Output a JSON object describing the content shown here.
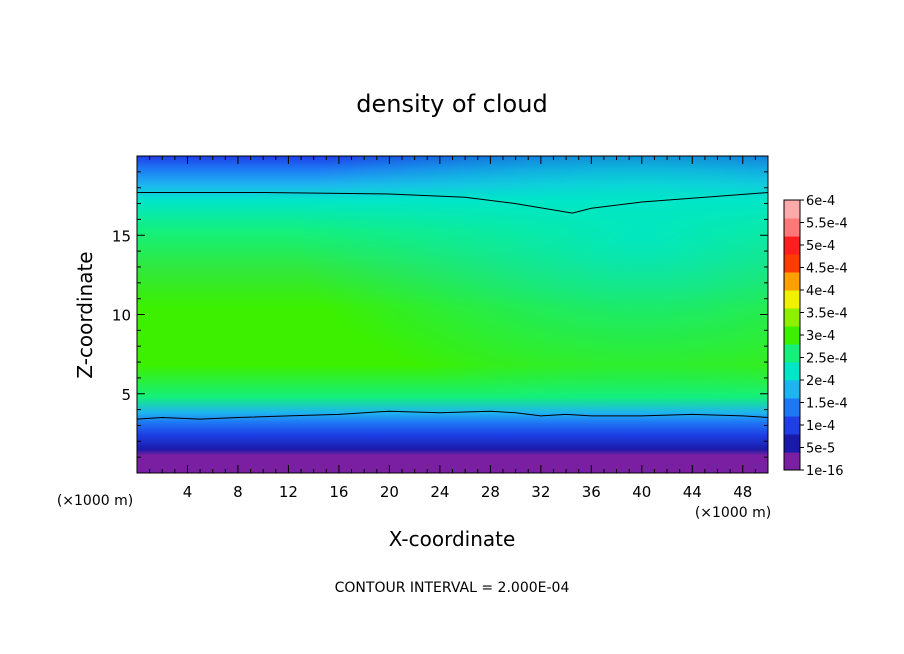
{
  "chart_data": {
    "type": "heatmap",
    "title": "density of cloud",
    "xlabel": "X-coordinate",
    "ylabel": "Z-coordinate",
    "x_units": "(×1000 m)",
    "y_units": "(×1000 m)",
    "xlim": [
      0,
      50
    ],
    "ylim": [
      0,
      20
    ],
    "x_ticks": [
      4,
      8,
      12,
      16,
      20,
      24,
      28,
      32,
      36,
      40,
      44,
      48
    ],
    "y_ticks": [
      5,
      10,
      15
    ],
    "footer": "CONTOUR INTERVAL = 2.000E-04",
    "colorbar": {
      "labels": [
        "1e-16",
        "5e-5",
        "1e-4",
        "1.5e-4",
        "2e-4",
        "2.5e-4",
        "3e-4",
        "3.5e-4",
        "4e-4",
        "4.5e-4",
        "5e-4",
        "5.5e-4",
        "6e-4"
      ],
      "colors": [
        "#7a1fa2",
        "#1a1aaa",
        "#1e3fe6",
        "#1e78f5",
        "#1eb4f0",
        "#00e6c8",
        "#14f07a",
        "#3cf000",
        "#8cf000",
        "#f0f000",
        "#ffa000",
        "#ff3c00",
        "#ff1e1e",
        "#ff7878",
        "#ffaaaa"
      ]
    },
    "contour_lines": [
      {
        "x": [
          0,
          10,
          20,
          26,
          30,
          34.5,
          36,
          40,
          45,
          50
        ],
        "z": [
          17.7,
          17.7,
          17.6,
          17.4,
          17.0,
          16.4,
          16.7,
          17.1,
          17.4,
          17.7
        ]
      },
      {
        "x": [
          0,
          2,
          5,
          8,
          12,
          16,
          20,
          24,
          28,
          30,
          32,
          34,
          36,
          40,
          44,
          48,
          50
        ],
        "z": [
          3.4,
          3.5,
          3.4,
          3.5,
          3.6,
          3.7,
          3.9,
          3.8,
          3.9,
          3.8,
          3.6,
          3.7,
          3.6,
          3.6,
          3.7,
          3.6,
          3.5
        ]
      }
    ]
  }
}
